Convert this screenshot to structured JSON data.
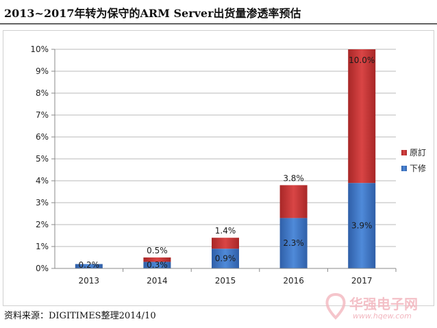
{
  "page": {
    "title": "2013~2017年转为保守的ARM Server出货量渗透率预估",
    "source": "资料来源：DIGITIMES整理2014/10",
    "watermark": "华强电子网",
    "watermark_url": "www.hqew.com"
  },
  "chart_data": {
    "type": "bar",
    "stacked": true,
    "categories": [
      "2013",
      "2014",
      "2015",
      "2016",
      "2017"
    ],
    "series": [
      {
        "name": "下修",
        "color": "#3b73c4",
        "values": [
          0.2,
          0.3,
          0.9,
          2.3,
          3.9
        ],
        "labels": [
          "0.2%",
          "0.3%",
          "0.9%",
          "2.3%",
          "3.9%"
        ]
      },
      {
        "name": "原訂",
        "color": "#c63232",
        "values": [
          0.0,
          0.2,
          0.5,
          1.5,
          6.1
        ]
      }
    ],
    "total_labels": [
      "",
      "0.5%",
      "1.4%",
      "3.8%",
      "10.0%"
    ],
    "y_ticks": [
      "0%",
      "1%",
      "2%",
      "3%",
      "4%",
      "5%",
      "6%",
      "7%",
      "8%",
      "9%",
      "10%"
    ],
    "ylim": [
      0,
      10
    ],
    "grid": true,
    "legend_position": "right"
  }
}
